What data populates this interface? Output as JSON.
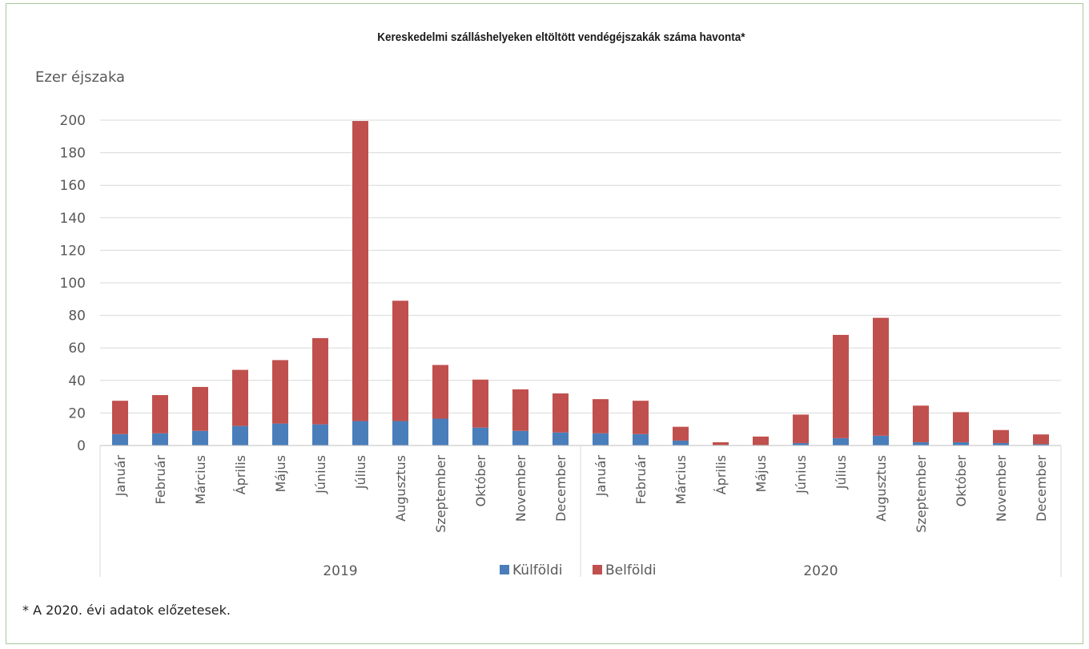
{
  "chart_data": {
    "type": "bar",
    "stacked": true,
    "title": "Kereskedelmi szálláshelyeken eltöltött vendégéjszakák száma havonta*",
    "ylabel": "Ezer éjszaka",
    "ylim": [
      0,
      200
    ],
    "yticks": [
      "0",
      "20",
      "40",
      "60",
      "80",
      "100",
      "120",
      "140",
      "160",
      "180",
      "200"
    ],
    "grid": true,
    "legend_position": "bottom",
    "groups": [
      {
        "label": "2019",
        "categories": [
          "Január",
          "Február",
          "Március",
          "Április",
          "Május",
          "Június",
          "Július",
          "Augusztus",
          "Szeptember",
          "Október",
          "November",
          "December"
        ]
      },
      {
        "label": "2020",
        "categories": [
          "Január",
          "Február",
          "Március",
          "Április",
          "Május",
          "Június",
          "Július",
          "Augusztus",
          "Szeptember",
          "Október",
          "November",
          "December"
        ]
      }
    ],
    "series": [
      {
        "name": "Külföldi",
        "color": "#4a7ebb",
        "values": [
          7,
          7.5,
          9,
          12,
          13.5,
          13,
          15,
          15,
          16.5,
          11,
          9,
          8,
          7.5,
          7,
          3,
          0.3,
          0.3,
          1.5,
          4.5,
          6,
          2,
          2,
          1.5,
          0.8
        ]
      },
      {
        "name": "Belföldi",
        "color": "#c0504d",
        "values": [
          20.5,
          23.5,
          27,
          34.5,
          39,
          53,
          184.5,
          74,
          33,
          29.5,
          25.5,
          24,
          21,
          20.5,
          8.5,
          1.7,
          5.2,
          17.5,
          63.5,
          72.5,
          22.5,
          18.5,
          8,
          6
        ]
      }
    ]
  },
  "footnote": "* A 2020. évi adatok előzetesek."
}
